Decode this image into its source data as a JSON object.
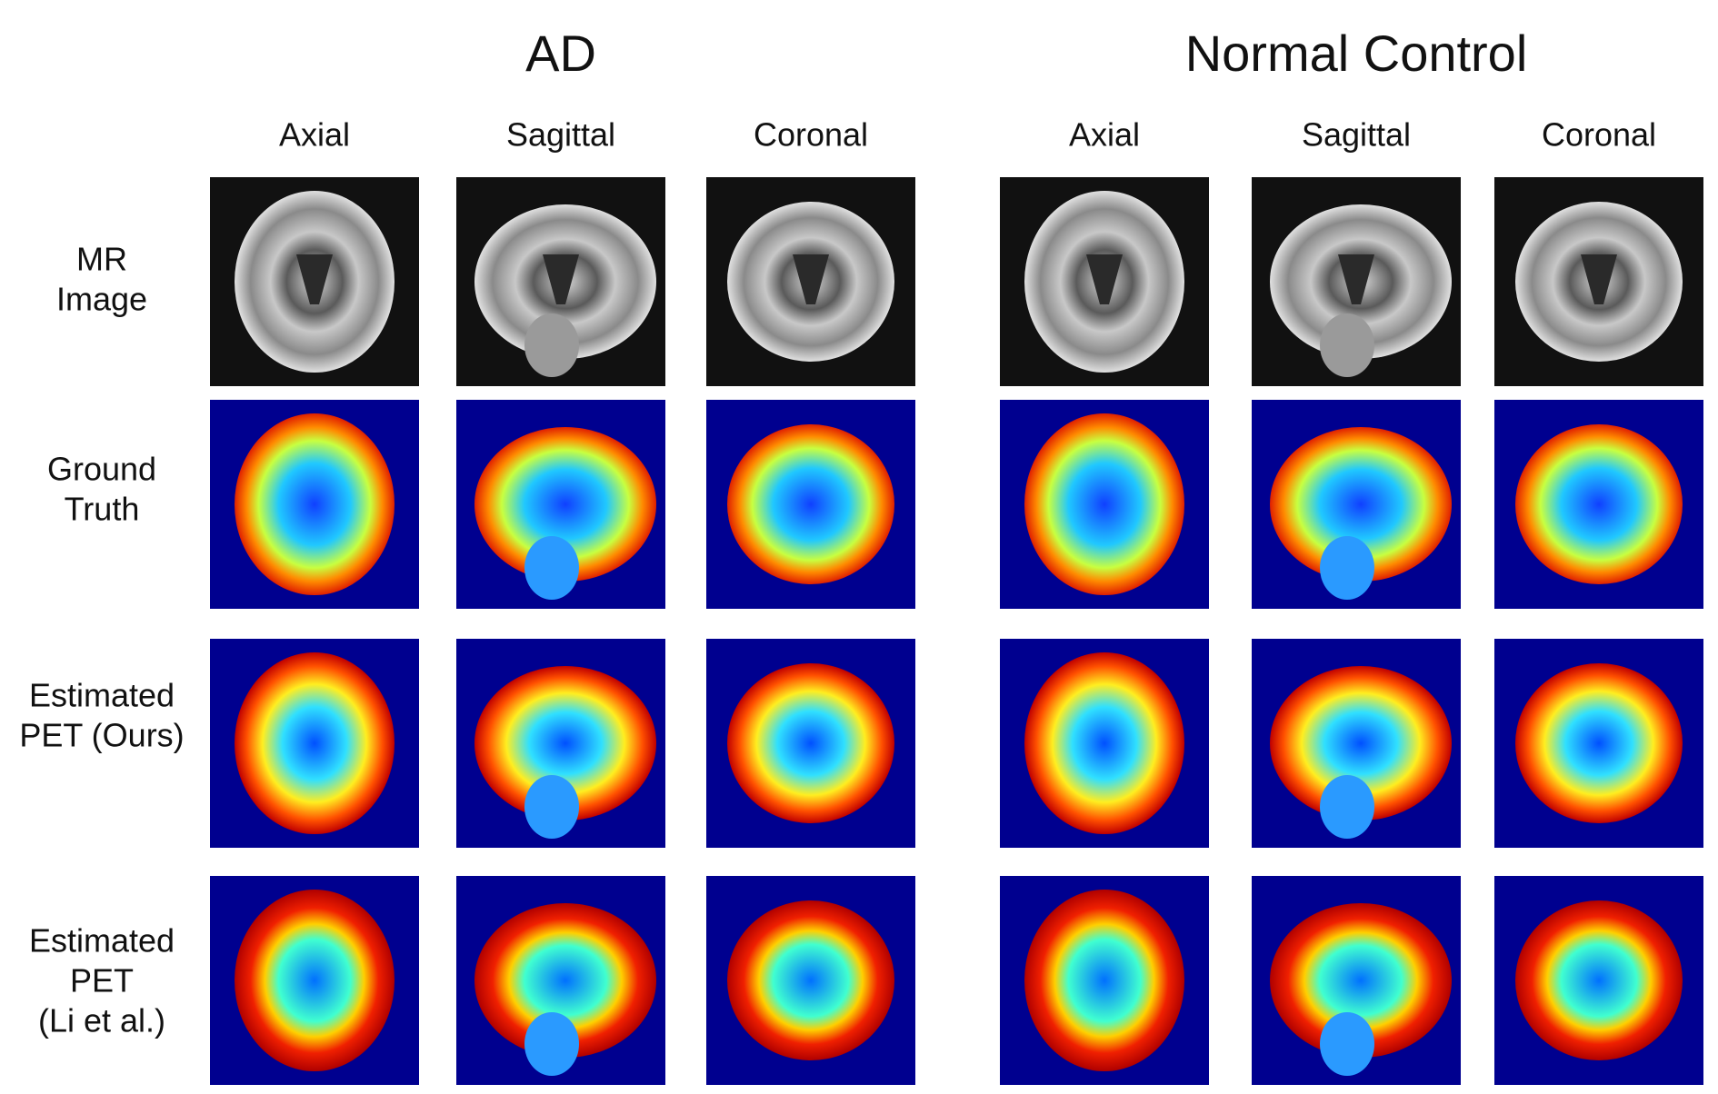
{
  "groups": [
    {
      "title": "AD",
      "views": [
        "Axial",
        "Sagittal",
        "Coronal"
      ]
    },
    {
      "title": "Normal Control",
      "views": [
        "Axial",
        "Sagittal",
        "Coronal"
      ]
    }
  ],
  "rows": [
    [
      "MR",
      "Image"
    ],
    [
      "Ground",
      "Truth"
    ],
    [
      "Estimated",
      "PET (Ours)"
    ],
    [
      "Estimated",
      "PET",
      "(Li et al.)"
    ]
  ]
}
